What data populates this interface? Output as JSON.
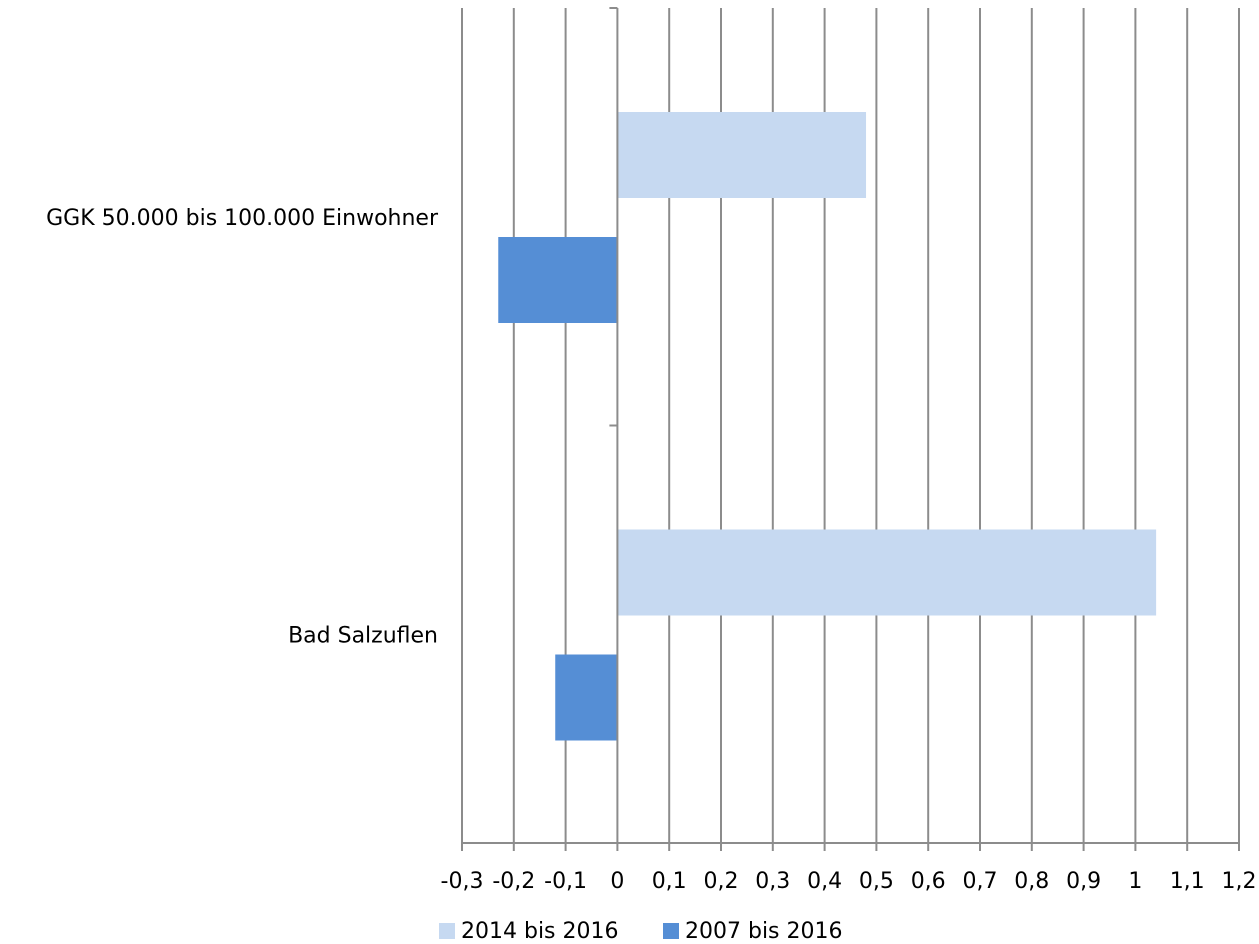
{
  "chart_data": {
    "type": "bar",
    "orientation": "horizontal",
    "categories": [
      "GGK 50.000 bis 100.000 Einwohner",
      "Bad Salzuflen"
    ],
    "series": [
      {
        "name": "2014 bis 2016",
        "color": "#c6d9f1",
        "values": [
          0.48,
          1.04
        ]
      },
      {
        "name": "2007 bis 2016",
        "color": "#558ed5",
        "values": [
          -0.23,
          -0.12
        ]
      }
    ],
    "xlim": [
      -0.3,
      1.2
    ],
    "xticks": [
      -0.3,
      -0.2,
      -0.1,
      0,
      0.1,
      0.2,
      0.3,
      0.4,
      0.5,
      0.6,
      0.7,
      0.8,
      0.9,
      1,
      1.1,
      1.2
    ],
    "xtick_labels": [
      "-0,3",
      "-0,2",
      "-0,1",
      "0",
      "0,1",
      "0,2",
      "0,3",
      "0,4",
      "0,5",
      "0,6",
      "0,7",
      "0,8",
      "0,9",
      "1",
      "1,1",
      "1,2"
    ],
    "grid": true,
    "gridline_color": "#8c8c8c",
    "legend_position": "bottom",
    "title": "",
    "xlabel": "",
    "ylabel": ""
  }
}
